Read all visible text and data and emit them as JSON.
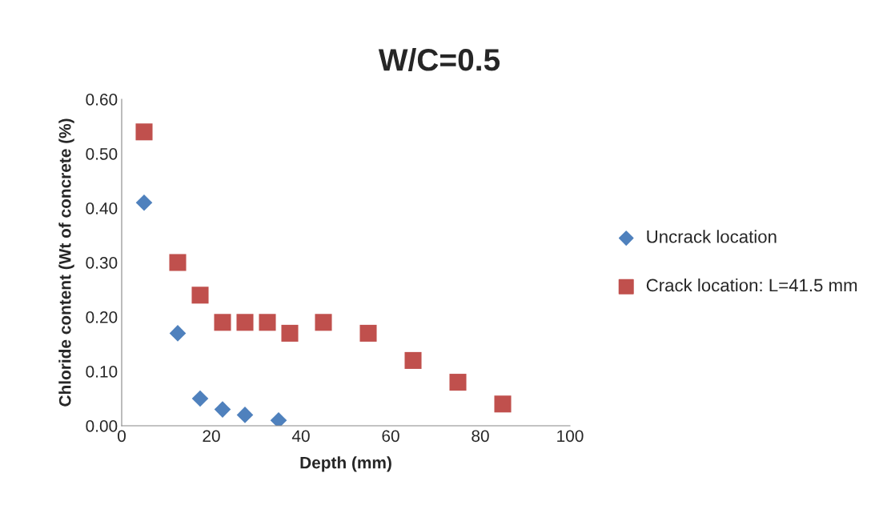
{
  "chart_data": {
    "type": "scatter",
    "title": "W/C=0.5",
    "xlabel": "Depth (mm)",
    "ylabel": "Chloride content (Wt of concrete (%)",
    "series": [
      {
        "name": "Uncrack location",
        "color": "#4f81bd",
        "marker": "diamond",
        "x": [
          5,
          12.5,
          17.5,
          22.5,
          27.5,
          35
        ],
        "values": [
          0.41,
          0.17,
          0.05,
          0.03,
          0.02,
          0.01
        ]
      },
      {
        "name": "Crack location: L=41.5 mm",
        "color": "#c0504d",
        "marker": "square",
        "x": [
          5,
          12.5,
          17.5,
          22.5,
          27.5,
          32.5,
          37.5,
          45,
          55,
          65,
          75,
          85
        ],
        "values": [
          0.54,
          0.3,
          0.24,
          0.19,
          0.19,
          0.19,
          0.17,
          0.19,
          0.17,
          0.12,
          0.08,
          0.04
        ]
      }
    ],
    "xlim": [
      0,
      100
    ],
    "xticks": [
      0,
      20,
      40,
      60,
      80,
      100
    ],
    "ylim": [
      0,
      0.6
    ],
    "yticks": [
      {
        "value": 0,
        "label": "0.00"
      },
      {
        "value": 0.1,
        "label": "0.10"
      },
      {
        "value": 0.2,
        "label": "0.20"
      },
      {
        "value": 0.3,
        "label": "0.30"
      },
      {
        "value": 0.4,
        "label": "0.40"
      },
      {
        "value": 0.5,
        "label": "0.50"
      },
      {
        "value": 0.6,
        "label": "0.60"
      }
    ],
    "grid": false,
    "legend": "right"
  }
}
